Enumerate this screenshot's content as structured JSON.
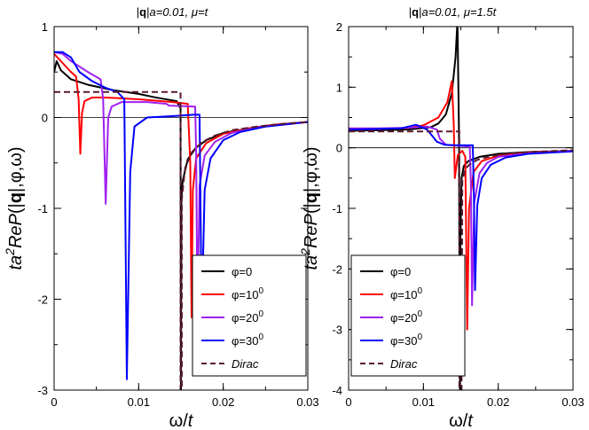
{
  "chart_data": [
    {
      "type": "line",
      "title": "|q|a=0.01, μ=t",
      "xlabel": "ω/t",
      "ylabel": "ta²RePi(|q|,φ,ω)",
      "xlim": [
        0,
        0.03
      ],
      "ylim": [
        -3,
        1
      ],
      "xticks": [
        0,
        0.01,
        0.02,
        0.03
      ],
      "xtick_labels": [
        "0",
        "0.01",
        "0.02",
        "0.03"
      ],
      "yticks": [
        -3,
        -2,
        -1,
        0,
        1
      ],
      "ytick_labels": [
        "-3",
        "-2",
        "-1",
        "0",
        "1"
      ],
      "legend_position": "bottom-right",
      "series": [
        {
          "name": "φ=0",
          "color": "#000000",
          "dash": false,
          "points": [
            [
              0,
              0.5
            ],
            [
              0.0003,
              0.62
            ],
            [
              0.0008,
              0.52
            ],
            [
              0.002,
              0.42
            ],
            [
              0.004,
              0.36
            ],
            [
              0.007,
              0.3
            ],
            [
              0.01,
              0.26
            ],
            [
              0.012,
              0.22
            ],
            [
              0.0145,
              0.18
            ],
            [
              0.01495,
              0.1
            ],
            [
              0.015,
              -3.2
            ],
            [
              0.01505,
              -0.9
            ],
            [
              0.0152,
              -0.7
            ],
            [
              0.0158,
              -0.46
            ],
            [
              0.0168,
              -0.33
            ],
            [
              0.018,
              -0.25
            ],
            [
              0.02,
              -0.17
            ],
            [
              0.023,
              -0.12
            ],
            [
              0.026,
              -0.08
            ],
            [
              0.03,
              -0.05
            ]
          ]
        },
        {
          "name": "φ=10°",
          "color": "#ff0000",
          "dash": false,
          "points": [
            [
              0,
              0.7
            ],
            [
              0.001,
              0.6
            ],
            [
              0.002,
              0.5
            ],
            [
              0.0026,
              0.45
            ],
            [
              0.0029,
              0.2
            ],
            [
              0.0031,
              -0.4
            ],
            [
              0.0033,
              0.05
            ],
            [
              0.0036,
              0.18
            ],
            [
              0.0045,
              0.22
            ],
            [
              0.006,
              0.22
            ],
            [
              0.01,
              0.2
            ],
            [
              0.014,
              0.17
            ],
            [
              0.0158,
              0.15
            ],
            [
              0.0161,
              -0.5
            ],
            [
              0.01625,
              -2.2
            ],
            [
              0.0164,
              -0.8
            ],
            [
              0.0168,
              -0.45
            ],
            [
              0.018,
              -0.28
            ],
            [
              0.02,
              -0.18
            ],
            [
              0.023,
              -0.12
            ],
            [
              0.026,
              -0.08
            ],
            [
              0.03,
              -0.05
            ]
          ]
        },
        {
          "name": "φ=20°",
          "color": "#a020f0",
          "dash": false,
          "points": [
            [
              0,
              0.72
            ],
            [
              0.001,
              0.7
            ],
            [
              0.002,
              0.62
            ],
            [
              0.004,
              0.5
            ],
            [
              0.0055,
              0.42
            ],
            [
              0.0058,
              0.2
            ],
            [
              0.0061,
              -0.95
            ],
            [
              0.0064,
              0.0
            ],
            [
              0.0068,
              0.12
            ],
            [
              0.008,
              0.17
            ],
            [
              0.011,
              0.17
            ],
            [
              0.0133,
              0.15
            ],
            [
              0.0136,
              0.13
            ],
            [
              0.01668,
              0.12
            ],
            [
              0.0168,
              -0.4
            ],
            [
              0.01695,
              -2.2
            ],
            [
              0.0172,
              -0.75
            ],
            [
              0.0178,
              -0.42
            ],
            [
              0.019,
              -0.27
            ],
            [
              0.021,
              -0.17
            ],
            [
              0.024,
              -0.11
            ],
            [
              0.03,
              -0.05
            ]
          ]
        },
        {
          "name": "φ=30°",
          "color": "#0000ff",
          "dash": false,
          "points": [
            [
              0,
              0.72
            ],
            [
              0.001,
              0.72
            ],
            [
              0.002,
              0.66
            ],
            [
              0.003,
              0.5
            ],
            [
              0.0045,
              0.4
            ],
            [
              0.006,
              0.33
            ],
            [
              0.0075,
              0.28
            ],
            [
              0.0083,
              0.2
            ],
            [
              0.0086,
              -2.88
            ],
            [
              0.009,
              -0.6
            ],
            [
              0.0095,
              -0.1
            ],
            [
              0.011,
              0.0
            ],
            [
              0.013,
              0.01
            ],
            [
              0.0148,
              0.02
            ],
            [
              0.0165,
              0.03
            ],
            [
              0.0172,
              0.03
            ],
            [
              0.01735,
              -1.3
            ],
            [
              0.01745,
              -2.2
            ],
            [
              0.0178,
              -0.8
            ],
            [
              0.0185,
              -0.45
            ],
            [
              0.02,
              -0.25
            ],
            [
              0.022,
              -0.16
            ],
            [
              0.025,
              -0.1
            ],
            [
              0.03,
              -0.05
            ]
          ]
        },
        {
          "name": "Dirac",
          "color": "#5a1a2a",
          "dash": true,
          "points": [
            [
              0,
              0.28
            ],
            [
              0.01495,
              0.28
            ],
            [
              0.01495,
              -3.0
            ],
            [
              0.0151,
              -3.0
            ],
            [
              0.0151,
              -0.9
            ],
            [
              0.0155,
              -0.55
            ],
            [
              0.0163,
              -0.38
            ],
            [
              0.0175,
              -0.27
            ],
            [
              0.019,
              -0.2
            ],
            [
              0.021,
              -0.14
            ],
            [
              0.024,
              -0.1
            ],
            [
              0.027,
              -0.07
            ],
            [
              0.03,
              -0.05
            ]
          ]
        }
      ]
    },
    {
      "type": "line",
      "title": "|q|a=0.01, μ=1.5t",
      "xlabel": "ω/t",
      "ylabel": "ta²RePi(|q|,φ,ω)",
      "xlim": [
        0,
        0.03
      ],
      "ylim": [
        -4,
        2
      ],
      "xticks": [
        0,
        0.01,
        0.02,
        0.03
      ],
      "xtick_labels": [
        "0",
        "0.01",
        "0.02",
        "0.03"
      ],
      "yticks": [
        -4,
        -3,
        -2,
        -1,
        0,
        1,
        2
      ],
      "ytick_labels": [
        "-4",
        "-3",
        "-2",
        "-1",
        "0",
        "1",
        "2"
      ],
      "legend_position": "bottom-left",
      "series": [
        {
          "name": "φ=0",
          "color": "#000000",
          "dash": false,
          "points": [
            [
              0,
              0.28
            ],
            [
              0.004,
              0.29
            ],
            [
              0.008,
              0.3
            ],
            [
              0.011,
              0.34
            ],
            [
              0.012,
              0.4
            ],
            [
              0.013,
              0.55
            ],
            [
              0.0138,
              0.9
            ],
            [
              0.0143,
              1.5
            ],
            [
              0.01455,
              2.1
            ],
            [
              0.01475,
              0.3
            ],
            [
              0.01485,
              -3.0
            ],
            [
              0.0149,
              -4.2
            ],
            [
              0.01495,
              -1.5
            ],
            [
              0.0151,
              -0.5
            ],
            [
              0.0154,
              -0.3
            ],
            [
              0.016,
              -0.22
            ],
            [
              0.0175,
              -0.15
            ],
            [
              0.02,
              -0.1
            ],
            [
              0.024,
              -0.07
            ],
            [
              0.03,
              -0.05
            ]
          ]
        },
        {
          "name": "φ=10°",
          "color": "#ff0000",
          "dash": false,
          "points": [
            [
              0,
              0.3
            ],
            [
              0.004,
              0.31
            ],
            [
              0.008,
              0.33
            ],
            [
              0.01,
              0.37
            ],
            [
              0.012,
              0.5
            ],
            [
              0.0132,
              0.75
            ],
            [
              0.0138,
              1.1
            ],
            [
              0.01405,
              0.4
            ],
            [
              0.0142,
              -0.5
            ],
            [
              0.0146,
              -0.12
            ],
            [
              0.0152,
              -0.05
            ],
            [
              0.0156,
              -0.15
            ],
            [
              0.01585,
              -3.0
            ],
            [
              0.0161,
              -1.0
            ],
            [
              0.0167,
              -0.4
            ],
            [
              0.0178,
              -0.22
            ],
            [
              0.02,
              -0.13
            ],
            [
              0.024,
              -0.08
            ],
            [
              0.03,
              -0.05
            ]
          ]
        },
        {
          "name": "φ=20°",
          "color": "#a020f0",
          "dash": false,
          "points": [
            [
              0,
              0.32
            ],
            [
              0.004,
              0.32
            ],
            [
              0.008,
              0.33
            ],
            [
              0.0105,
              0.35
            ],
            [
              0.0118,
              0.3
            ],
            [
              0.0122,
              0.15
            ],
            [
              0.013,
              0.05
            ],
            [
              0.014,
              0.04
            ],
            [
              0.015,
              0.03
            ],
            [
              0.0162,
              0.02
            ],
            [
              0.01635,
              -0.6
            ],
            [
              0.0165,
              -2.6
            ],
            [
              0.0168,
              -0.9
            ],
            [
              0.0175,
              -0.42
            ],
            [
              0.0185,
              -0.25
            ],
            [
              0.02,
              -0.15
            ],
            [
              0.024,
              -0.09
            ],
            [
              0.03,
              -0.05
            ]
          ]
        },
        {
          "name": "φ=30°",
          "color": "#0000ff",
          "dash": false,
          "points": [
            [
              0,
              0.3
            ],
            [
              0.004,
              0.31
            ],
            [
              0.007,
              0.32
            ],
            [
              0.009,
              0.38
            ],
            [
              0.0105,
              0.3
            ],
            [
              0.0118,
              0.1
            ],
            [
              0.0128,
              0.05
            ],
            [
              0.014,
              0.04
            ],
            [
              0.0155,
              0.04
            ],
            [
              0.0166,
              0.04
            ],
            [
              0.01675,
              -0.8
            ],
            [
              0.0169,
              -2.35
            ],
            [
              0.0172,
              -0.95
            ],
            [
              0.0178,
              -0.5
            ],
            [
              0.019,
              -0.28
            ],
            [
              0.021,
              -0.16
            ],
            [
              0.024,
              -0.1
            ],
            [
              0.03,
              -0.06
            ]
          ]
        },
        {
          "name": "Dirac",
          "color": "#5a1a2a",
          "dash": true,
          "points": [
            [
              0,
              0.27
            ],
            [
              0.0148,
              0.27
            ],
            [
              0.0148,
              -4.0
            ],
            [
              0.0151,
              -4.0
            ],
            [
              0.0152,
              -0.55
            ],
            [
              0.0156,
              -0.35
            ],
            [
              0.0162,
              -0.27
            ],
            [
              0.0172,
              -0.2
            ],
            [
              0.019,
              -0.14
            ],
            [
              0.021,
              -0.1
            ],
            [
              0.024,
              -0.07
            ],
            [
              0.03,
              -0.04
            ]
          ]
        }
      ]
    }
  ]
}
